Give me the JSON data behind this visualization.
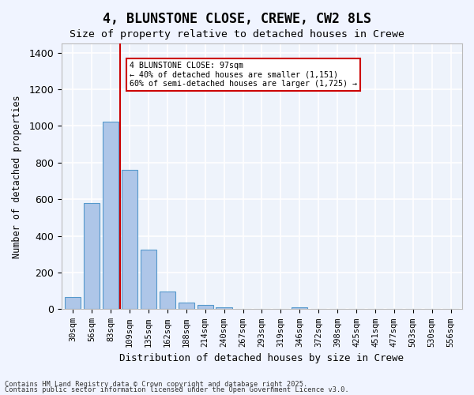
{
  "title": "4, BLUNSTONE CLOSE, CREWE, CW2 8LS",
  "subtitle": "Size of property relative to detached houses in Crewe",
  "xlabel": "Distribution of detached houses by size in Crewe",
  "ylabel": "Number of detached properties",
  "bar_color": "#aec6e8",
  "bar_edge_color": "#5599cc",
  "background_color": "#eef3fb",
  "grid_color": "#ffffff",
  "categories": [
    "30sqm",
    "56sqm",
    "83sqm",
    "109sqm",
    "135sqm",
    "162sqm",
    "188sqm",
    "214sqm",
    "240sqm",
    "267sqm",
    "293sqm",
    "319sqm",
    "346sqm",
    "372sqm",
    "398sqm",
    "425sqm",
    "451sqm",
    "477sqm",
    "503sqm",
    "530sqm",
    "556sqm"
  ],
  "values": [
    65,
    580,
    1025,
    760,
    325,
    95,
    38,
    22,
    12,
    0,
    0,
    0,
    12,
    0,
    0,
    0,
    0,
    0,
    0,
    0,
    0
  ],
  "ylim": [
    0,
    1450
  ],
  "yticks": [
    0,
    200,
    400,
    600,
    800,
    1000,
    1200,
    1400
  ],
  "red_line_x": 2.5,
  "annotation_title": "4 BLUNSTONE CLOSE: 97sqm",
  "annotation_line1": "← 40% of detached houses are smaller (1,151)",
  "annotation_line2": "60% of semi-detached houses are larger (1,725) →",
  "annotation_box_color": "#ffffff",
  "annotation_box_edge": "#cc0000",
  "red_line_color": "#cc0000",
  "footer1": "Contains HM Land Registry data © Crown copyright and database right 2025.",
  "footer2": "Contains public sector information licensed under the Open Government Licence v3.0."
}
